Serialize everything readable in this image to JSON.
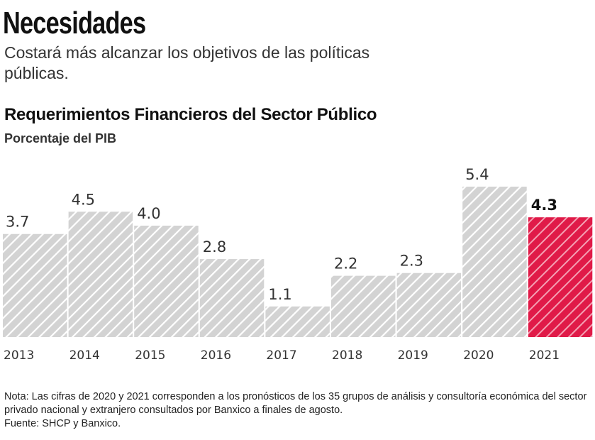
{
  "header": {
    "title": "Necesidades",
    "subtitle": "Costará más alcanzar los objetivos de las políticas públicas."
  },
  "chart_data": {
    "type": "bar",
    "title": "Requerimientos Financieros del Sector Público",
    "subtitle": "Porcentaje del PIB",
    "categories": [
      "2013",
      "2014",
      "2015",
      "2016",
      "2017",
      "2018",
      "2019",
      "2020",
      "2021"
    ],
    "values": [
      3.7,
      4.5,
      4.0,
      2.8,
      1.1,
      2.2,
      2.3,
      5.4,
      4.3
    ],
    "data_labels": [
      "3.7",
      "4.5",
      "4.0",
      "2.8",
      "1.1",
      "2.2",
      "2.3",
      "5.4",
      "4.3"
    ],
    "highlight_category": "2021",
    "colors": {
      "default": "#d3d3d3",
      "highlight": "#e01a48",
      "stripe": "#ffffff"
    },
    "ylim": [
      0,
      5.4
    ],
    "grid": false,
    "pattern": "diagonal-hatch"
  },
  "footer": {
    "note": "Nota: Las cifras de 2020 y 2021 corresponden a los pronósticos de los 35 grupos de análisis y consultoría económica del sector privado nacional y extranjero consultados por Banxico a finales de agosto.",
    "source": "Fuente: SHCP y Banxico."
  }
}
